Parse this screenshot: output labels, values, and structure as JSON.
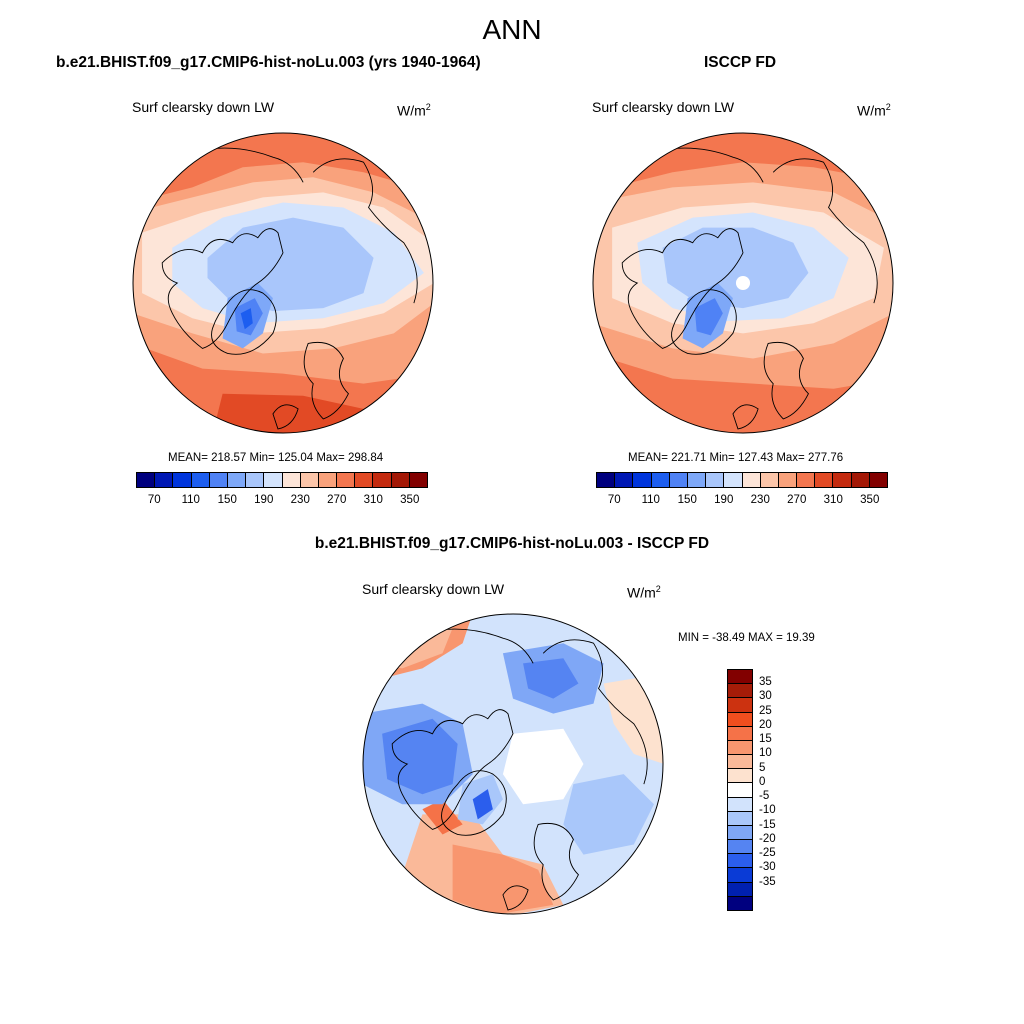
{
  "figure": {
    "season": "ANN"
  },
  "panels": [
    {
      "title": "b.e21.BHIST.f09_g17.CMIP6-hist-noLu.003 (yrs 1940-1964)",
      "variable": "Surf clearsky down LW",
      "units_base": "W/m",
      "units_exp": "2",
      "stats": "MEAN= 218.57  Min= 125.04  Max= 298.84"
    },
    {
      "title": "ISCCP FD",
      "variable": "Surf clearsky down LW",
      "units_base": "W/m",
      "units_exp": "2",
      "stats": "MEAN= 221.71  Min= 127.43  Max= 277.76"
    },
    {
      "title": "b.e21.BHIST.f09_g17.CMIP6-hist-noLu.003 - ISCCP FD",
      "variable": "Surf clearsky down LW",
      "units_base": "W/m",
      "units_exp": "2",
      "stats": "MIN = -38.49 MAX =  19.39"
    }
  ],
  "colorbar_abs": {
    "colors": [
      "#00007f",
      "#0018b4",
      "#0035dc",
      "#1d5ef0",
      "#4f82f5",
      "#7ea8f8",
      "#a9c6fb",
      "#d4e4fd",
      "#fde5d8",
      "#fcc6aa",
      "#f9a27c",
      "#f3764f",
      "#e24a25",
      "#c42a0f",
      "#a31806",
      "#820000"
    ],
    "tick_labels": [
      "70",
      "110",
      "150",
      "190",
      "230",
      "270",
      "310",
      "350"
    ]
  },
  "colorbar_diff": {
    "colors": [
      "#820000",
      "#a51c08",
      "#cc3210",
      "#f04e1e",
      "#f57248",
      "#f8966f",
      "#fab999",
      "#fde2cf",
      "#ffffff",
      "#d2e3fc",
      "#a9c7fa",
      "#7fa7f6",
      "#5584f2",
      "#2b5eed",
      "#0a3bd6",
      "#0020b0",
      "#00007f"
    ],
    "tick_labels": [
      "35",
      "30",
      "25",
      "20",
      "15",
      "10",
      "5",
      "0",
      "-5",
      "-10",
      "-15",
      "-20",
      "-25",
      "-30",
      "-35"
    ]
  }
}
